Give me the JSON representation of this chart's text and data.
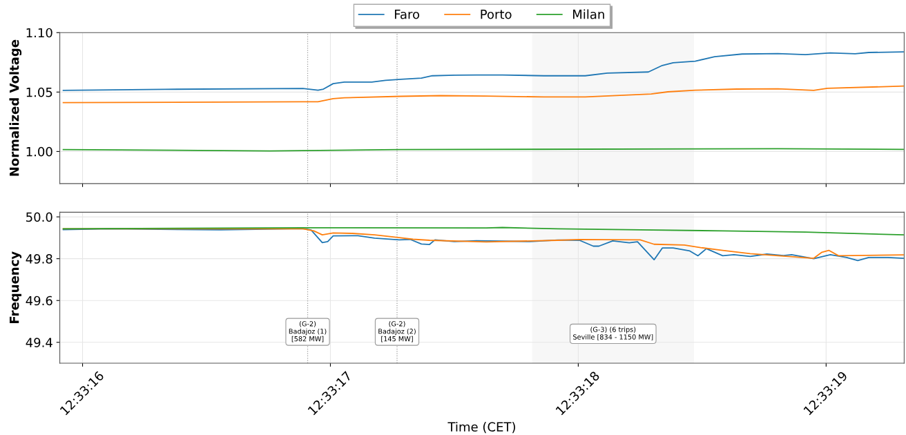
{
  "chart_data": [
    {
      "type": "line",
      "ylabel": "Normalized Voltage",
      "xlim": [
        12.5544189,
        12.5553653
      ],
      "ylim": [
        0.973,
        1.1
      ],
      "yticks": [
        {
          "value": 1.0,
          "label": "1.00"
        },
        {
          "value": 1.05,
          "label": "1.05"
        },
        {
          "value": 1.1,
          "label": "1.10"
        }
      ],
      "xticks": [
        {
          "value": 12.5544444,
          "label": null
        },
        {
          "value": 12.5547222,
          "label": null
        },
        {
          "value": 12.555,
          "label": null
        },
        {
          "value": 12.5552778,
          "label": null
        }
      ],
      "tick_labels": "y",
      "grid": true,
      "legend": "top",
      "ref_lines": [
        {
          "axis": "x",
          "value": 12.5546967,
          "color": "#999999",
          "line_style": "dotted"
        },
        {
          "axis": "x",
          "value": 12.5547969,
          "color": "#999999",
          "line_style": "dotted"
        }
      ],
      "bands": [
        {
          "axis": "x",
          "from": 12.5549483,
          "to": 12.5551297,
          "color": "#f7f7f7"
        }
      ],
      "series": [
        {
          "name": "Faro",
          "color": "#1f77b4",
          "x": [
            12.5544228,
            12.5545369,
            12.5546914,
            12.5547083,
            12.5547144,
            12.5547253,
            12.5547378,
            12.5547686,
            12.5547839,
            12.5548008,
            12.5548242,
            12.5548364,
            12.5548611,
            12.5548858,
            12.554915,
            12.5549614,
            12.5550078,
            12.5550325,
            12.5550786,
            12.5550942,
            12.5551064,
            12.5551311,
            12.5551528,
            12.5551836,
            12.5552239,
            12.5552547,
            12.5552825,
            12.5553103,
            12.5553256,
            12.5553642
          ],
          "values": [
            1.0514,
            1.0523,
            1.053,
            1.0516,
            1.0525,
            1.0571,
            1.0584,
            1.0584,
            1.0598,
            1.0607,
            1.0617,
            1.0637,
            1.0642,
            1.0644,
            1.0644,
            1.0637,
            1.0637,
            1.066,
            1.0669,
            1.0724,
            1.0747,
            1.076,
            1.0797,
            1.082,
            1.0824,
            1.0815,
            1.0829,
            1.0822,
            1.0833,
            1.0838
          ]
        },
        {
          "name": "Porto",
          "color": "#ff7f0e",
          "x": [
            12.5544228,
            12.5546914,
            12.5547083,
            12.5547253,
            12.5547378,
            12.5548008,
            12.5548456,
            12.5548967,
            12.5549614,
            12.5550078,
            12.5550817,
            12.5551003,
            12.5551311,
            12.5551775,
            12.5552239,
            12.5552639,
            12.5552792,
            12.5553642
          ],
          "values": [
            1.0411,
            1.0418,
            1.0418,
            1.0445,
            1.0452,
            1.0464,
            1.047,
            1.0466,
            1.0459,
            1.0459,
            1.0484,
            1.0502,
            1.0516,
            1.0525,
            1.0527,
            1.0514,
            1.0532,
            1.055
          ]
        },
        {
          "name": "Milan",
          "color": "#2ca02c",
          "x": [
            12.5544228,
            12.5546544,
            12.5547994,
            12.5552239,
            12.5553642
          ],
          "values": [
            1.0016,
            1.0005,
            1.0016,
            1.0023,
            1.0018
          ]
        }
      ]
    },
    {
      "type": "line",
      "xlabel": "Time (CET)",
      "ylabel": "Frequency",
      "xlim": [
        12.5544189,
        12.5553653
      ],
      "ylim": [
        49.3,
        50.022
      ],
      "yticks": [
        {
          "value": 49.4,
          "label": "49.4"
        },
        {
          "value": 49.6,
          "label": "49.6"
        },
        {
          "value": 49.8,
          "label": "49.8"
        },
        {
          "value": 50.0,
          "label": "50.0"
        }
      ],
      "xticks": [
        {
          "value": 12.5544444,
          "label": "12:33:16"
        },
        {
          "value": 12.5547222,
          "label": "12:33:17"
        },
        {
          "value": 12.555,
          "label": "12:33:18"
        },
        {
          "value": 12.5552778,
          "label": "12:33:19"
        }
      ],
      "grid": true,
      "ref_lines": [
        {
          "axis": "x",
          "value": 12.5546967,
          "color": "#999999",
          "line_style": "dotted"
        },
        {
          "axis": "x",
          "value": 12.5547969,
          "color": "#999999",
          "line_style": "dotted"
        }
      ],
      "bands": [
        {
          "axis": "x",
          "from": 12.5549483,
          "to": 12.5551297,
          "color": "#f7f7f7"
        }
      ],
      "annotations": [
        {
          "text": "(G-2)\nBadajoz (1)\n[582 MW]",
          "x": 12.5546967,
          "y": 49.45
        },
        {
          "text": "(G-2)\nBadajoz (2)\n[145 MW]",
          "x": 12.5547969,
          "y": 49.45
        },
        "(G-3) (6 trips)\nSeville [834 - 1150 MW]"
      ],
      "series": [
        {
          "color": "#1f77b4",
          "x": [
            12.5544228,
            12.5544753,
            12.5545989,
            12.5546914,
            12.5547006,
            12.5547131,
            12.5547192,
            12.5547253,
            12.5547531,
            12.5547717,
            12.5547994,
            12.5548117,
            12.5548242,
            12.5548333,
            12.5548394,
            12.5548611,
            12.5548858,
            12.5549461,
            12.5549769,
            12.5550014,
            12.5550169,
            12.5550231,
            12.5550386,
            12.5550572,
            12.5550664,
            12.555085,
            12.5550942,
            12.5551064,
            12.555125,
            12.5551342,
            12.5551436,
            12.5551619,
            12.5551744,
            12.5551928,
            12.5552114,
            12.55523,
            12.5552392,
            12.5552639,
            12.5552825,
            12.5553008,
            12.5553133,
            12.5553256,
            12.5553472,
            12.5553642
          ],
          "values": [
            49.939,
            49.943,
            49.938,
            49.944,
            49.937,
            49.877,
            49.882,
            49.909,
            49.91,
            49.898,
            49.89,
            49.892,
            49.87,
            49.868,
            49.89,
            49.882,
            49.886,
            49.882,
            49.889,
            49.888,
            49.86,
            49.86,
            49.885,
            49.876,
            49.881,
            49.795,
            49.851,
            49.851,
            49.837,
            49.814,
            49.848,
            49.814,
            49.819,
            49.811,
            49.822,
            49.815,
            49.819,
            49.8,
            49.819,
            49.806,
            49.791,
            49.806,
            49.806,
            49.802
          ]
        },
        {
          "color": "#ff7f0e",
          "x": [
            12.5544228,
            12.5546914,
            12.5547036,
            12.5547131,
            12.5547253,
            12.5547469,
            12.5547717,
            12.5547994,
            12.5548147,
            12.5548333,
            12.5548967,
            12.5549769,
            12.5550014,
            12.5550694,
            12.555085,
            12.5551189,
            12.5551372,
            12.5551619,
            12.5551928,
            12.5552639,
            12.5552731,
            12.5552808,
            12.5552917,
            12.5553642
          ],
          "values": [
            49.943,
            49.943,
            49.933,
            49.914,
            49.923,
            49.921,
            49.914,
            49.901,
            49.893,
            49.888,
            49.88,
            49.888,
            49.892,
            49.89,
            49.869,
            49.865,
            49.853,
            49.84,
            49.824,
            49.802,
            49.831,
            49.84,
            49.814,
            49.818
          ]
        },
        {
          "color": "#2ca02c",
          "x": [
            12.5544228,
            12.5546914,
            12.5548967,
            12.554915,
            12.5549769,
            12.5550694,
            12.5551619,
            12.5552547,
            12.5553642
          ],
          "values": [
            49.943,
            49.948,
            49.947,
            49.949,
            49.943,
            49.938,
            49.933,
            49.927,
            49.914
          ]
        }
      ]
    }
  ]
}
